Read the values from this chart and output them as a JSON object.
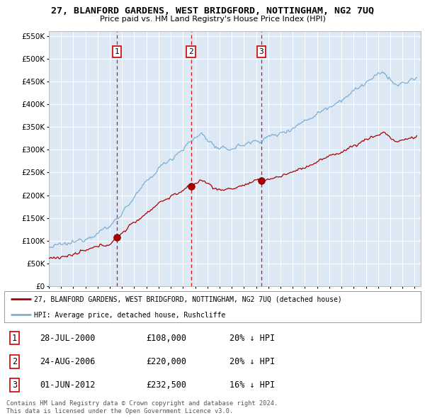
{
  "title": "27, BLANFORD GARDENS, WEST BRIDGFORD, NOTTINGHAM, NG2 7UQ",
  "subtitle": "Price paid vs. HM Land Registry's House Price Index (HPI)",
  "ylim": [
    0,
    560000
  ],
  "yticks": [
    0,
    50000,
    100000,
    150000,
    200000,
    250000,
    300000,
    350000,
    400000,
    450000,
    500000,
    550000
  ],
  "background_color": "#ffffff",
  "plot_bg_color": "#dde8f5",
  "grid_color": "#ffffff",
  "sale_color": "#aa0000",
  "hpi_color": "#7bafd4",
  "dashed_line_color": "#cc0000",
  "annotation_box_color": "#cc0000",
  "transactions": [
    {
      "label": "1",
      "date_x": 2000.57,
      "price": 108000,
      "pct": "20%",
      "date_str": "28-JUL-2000",
      "price_str": "£108,000"
    },
    {
      "label": "2",
      "date_x": 2006.65,
      "price": 220000,
      "pct": "20%",
      "date_str": "24-AUG-2006",
      "price_str": "£220,000"
    },
    {
      "label": "3",
      "date_x": 2012.42,
      "price": 232500,
      "pct": "16%",
      "date_str": "01-JUN-2012",
      "price_str": "£232,500"
    }
  ],
  "legend_entries": [
    "27, BLANFORD GARDENS, WEST BRIDGFORD, NOTTINGHAM, NG2 7UQ (detached house)",
    "HPI: Average price, detached house, Rushcliffe"
  ],
  "footnote": "Contains HM Land Registry data © Crown copyright and database right 2024.\nThis data is licensed under the Open Government Licence v3.0.",
  "xmin": 1995.0,
  "xmax": 2025.5
}
